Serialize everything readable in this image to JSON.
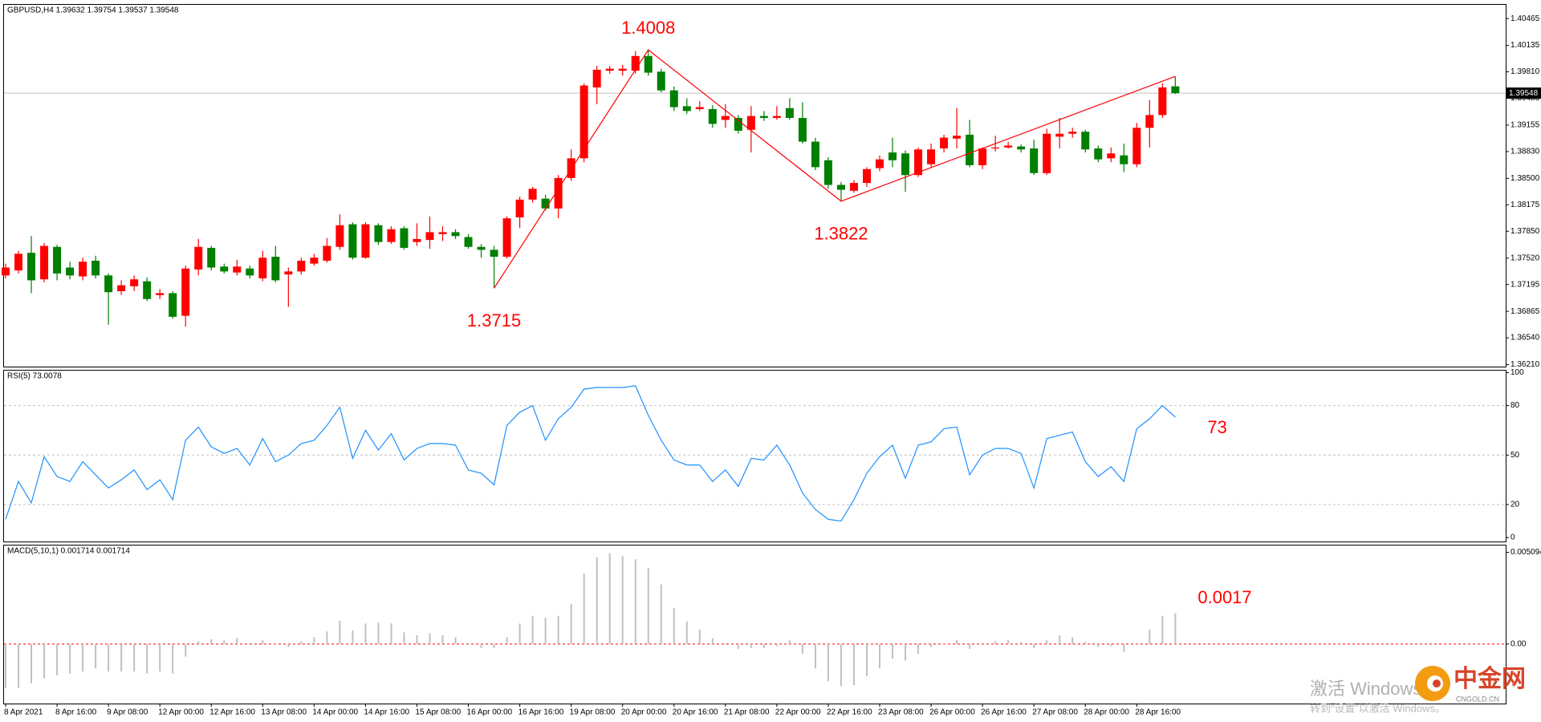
{
  "chart_data": [
    {
      "type": "candlestick",
      "title": "GBPUSD,H4  1.39632 1.39754 1.39537 1.39548",
      "x": [
        "8 Apr 2021",
        null,
        null,
        null,
        "8 Apr 16:00",
        null,
        null,
        null,
        "9 Apr 08:00",
        null,
        null,
        null,
        "12 Apr 00:00",
        null,
        null,
        null,
        "12 Apr 16:00",
        null,
        null,
        null,
        "13 Apr 08:00",
        null,
        null,
        null,
        "14 Apr 00:00",
        null,
        null,
        null,
        "14 Apr 16:00",
        null,
        null,
        null,
        "15 Apr 08:00",
        null,
        null,
        null,
        "16 Apr 00:00",
        null,
        null,
        null,
        "16 Apr 16:00",
        null,
        null,
        null,
        "19 Apr 08:00",
        null,
        null,
        null,
        "20 Apr 00:00",
        null,
        null,
        null,
        "20 Apr 16:00",
        null,
        null,
        null,
        "21 Apr 08:00",
        null,
        null,
        null,
        "22 Apr 00:00",
        null,
        null,
        null,
        "22 Apr 16:00",
        null,
        null,
        null,
        "23 Apr 08:00",
        null,
        null,
        null,
        "26 Apr 00:00",
        null,
        null,
        null,
        "26 Apr 16:00",
        null,
        null,
        null,
        "27 Apr 08:00",
        null,
        null,
        null,
        "28 Apr 00:00",
        null,
        null,
        null,
        "28 Apr 16:00",
        null,
        null,
        null
      ],
      "open": [
        1.37307,
        1.37368,
        1.37585,
        1.37259,
        1.37658,
        1.37404,
        1.37295,
        1.37488,
        1.37307,
        1.37113,
        1.37174,
        1.37235,
        1.37065,
        1.37089,
        1.36811,
        1.3738,
        1.37646,
        1.37416,
        1.37343,
        1.37392,
        1.37271,
        1.37537,
        1.37319,
        1.37356,
        1.37452,
        1.37488,
        1.37658,
        1.37936,
        1.37525,
        1.37924,
        1.37718,
        1.37887,
        1.37718,
        1.37743,
        1.37815,
        1.37839,
        1.37779,
        1.37658,
        1.37622,
        1.37537,
        1.38021,
        1.38239,
        1.38251,
        1.3813,
        1.38505,
        1.38747,
        1.39618,
        1.39824,
        1.39824,
        1.39824,
        1.40005,
        1.39812,
        1.39582,
        1.39388,
        1.39352,
        1.39352,
        1.39219,
        1.39243,
        1.39098,
        1.39267,
        1.39243,
        1.39364,
        1.39243,
        1.38952,
        1.38723,
        1.3842,
        1.38348,
        1.38444,
        1.38626,
        1.38819,
        1.38807,
        1.38541,
        1.38674,
        1.38868,
        1.38989,
        1.39037,
        1.38662,
        1.38868,
        1.3888,
        1.38892,
        1.38868,
        1.38565,
        1.39013,
        1.39049,
        1.39074,
        1.38868,
        1.38747,
        1.38783,
        1.38674,
        1.39122,
        1.39279,
        1.39632
      ],
      "high": [
        1.37452,
        1.3761,
        1.37791,
        1.37706,
        1.37682,
        1.37476,
        1.37525,
        1.37549,
        1.37331,
        1.37247,
        1.37307,
        1.37283,
        1.37138,
        1.37113,
        1.37428,
        1.37755,
        1.3767,
        1.37452,
        1.375,
        1.37428,
        1.3761,
        1.3767,
        1.37404,
        1.37525,
        1.37573,
        1.37767,
        1.38057,
        1.3796,
        1.3796,
        1.37948,
        1.37912,
        1.37912,
        1.37948,
        1.38033,
        1.37912,
        1.37875,
        1.37815,
        1.37694,
        1.3767,
        1.38033,
        1.38275,
        1.38396,
        1.38299,
        1.38541,
        1.38856,
        1.39667,
        1.39884,
        1.39884,
        1.39896,
        1.40066,
        1.4008,
        1.39848,
        1.3963,
        1.39485,
        1.39449,
        1.394,
        1.39412,
        1.39279,
        1.39388,
        1.39328,
        1.39388,
        1.39485,
        1.39437,
        1.39001,
        1.38759,
        1.38456,
        1.3848,
        1.38638,
        1.38783,
        1.39001,
        1.38843,
        1.3888,
        1.38928,
        1.39037,
        1.39364,
        1.39219,
        1.3888,
        1.39025,
        1.38952,
        1.38916,
        1.38976,
        1.3911,
        1.39243,
        1.39122,
        1.39098,
        1.38904,
        1.3888,
        1.38928,
        1.39182,
        1.39461,
        1.39667,
        1.39754
      ],
      "low": [
        1.37271,
        1.37331,
        1.37089,
        1.37222,
        1.37247,
        1.37259,
        1.37247,
        1.37271,
        1.36702,
        1.37065,
        1.37113,
        1.36992,
        1.37017,
        1.36775,
        1.36678,
        1.37307,
        1.37368,
        1.37331,
        1.37307,
        1.37271,
        1.37235,
        1.37222,
        1.3692,
        1.37319,
        1.37428,
        1.37464,
        1.37622,
        1.375,
        1.37513,
        1.37682,
        1.37694,
        1.37622,
        1.3767,
        1.37634,
        1.3773,
        1.37755,
        1.37634,
        1.37525,
        1.3715,
        1.37513,
        1.37888,
        1.38202,
        1.38106,
        1.38009,
        1.38469,
        1.38698,
        1.39412,
        1.39788,
        1.39763,
        1.39788,
        1.39763,
        1.39558,
        1.39328,
        1.39291,
        1.39328,
        1.39122,
        1.39122,
        1.39049,
        1.38819,
        1.39207,
        1.39219,
        1.39219,
        1.38928,
        1.38601,
        1.38372,
        1.3822,
        1.38323,
        1.38396,
        1.38589,
        1.38638,
        1.38335,
        1.38517,
        1.38638,
        1.38819,
        1.38868,
        1.38638,
        1.38614,
        1.38831,
        1.38868,
        1.38819,
        1.38541,
        1.38541,
        1.38868,
        1.39001,
        1.38819,
        1.38698,
        1.38698,
        1.38577,
        1.38638,
        1.3888,
        1.39243,
        1.39537
      ],
      "close": [
        1.37404,
        1.37573,
        1.37247,
        1.3767,
        1.37331,
        1.37307,
        1.37476,
        1.37307,
        1.37101,
        1.37186,
        1.37259,
        1.37017,
        1.37089,
        1.36799,
        1.37392,
        1.37658,
        1.37404,
        1.37356,
        1.37416,
        1.37307,
        1.37525,
        1.37247,
        1.37356,
        1.37488,
        1.37525,
        1.3767,
        1.37924,
        1.37525,
        1.37936,
        1.37718,
        1.37875,
        1.37646,
        1.37755,
        1.37839,
        1.37839,
        1.37791,
        1.37658,
        1.37622,
        1.37537,
        1.38009,
        1.38239,
        1.38372,
        1.3813,
        1.38505,
        1.38747,
        1.39642,
        1.39836,
        1.39848,
        1.39848,
        1.40005,
        1.398,
        1.39582,
        1.39376,
        1.39328,
        1.39376,
        1.3917,
        1.39267,
        1.39086,
        1.39267,
        1.39243,
        1.39267,
        1.39243,
        1.38952,
        1.38638,
        1.3842,
        1.3836,
        1.38444,
        1.38614,
        1.38734,
        1.38723,
        1.38541,
        1.38856,
        1.38856,
        1.39001,
        1.39025,
        1.38662,
        1.38868,
        1.3888,
        1.38904,
        1.38856,
        1.38565,
        1.39049,
        1.39049,
        1.39074,
        1.38856,
        1.38734,
        1.38807,
        1.38674,
        1.39122,
        1.39279,
        1.39618,
        1.39548
      ],
      "up_color": "#ff0000",
      "down_color": "#008000",
      "ylim": [
        1.36186,
        1.40634
      ],
      "yticks": [
        1.40465,
        1.40135,
        {
          "value": 1.3981,
          "label": "1.39810"
        },
        1.39485,
        1.39155,
        {
          "value": 1.3883,
          "label": "1.38830"
        },
        {
          "value": 1.385,
          "label": "1.38500"
        },
        1.38175,
        {
          "value": 1.3785,
          "label": "1.37850"
        },
        {
          "value": 1.3752,
          "label": "1.37520"
        },
        1.37195,
        1.36865,
        {
          "value": 1.3654,
          "label": "1.36540"
        },
        {
          "value": 1.3621,
          "label": "1.36210"
        }
      ],
      "current_price": 1.39548,
      "annotations": [
        {
          "label": "1.3715",
          "value": 1.3715
        },
        {
          "label": "1.4008",
          "value": 1.4008
        },
        {
          "label": "1.3822",
          "value": 1.3822
        }
      ],
      "annotation_color": "#ff0000"
    },
    {
      "type": "line",
      "title": "RSI(5) 73.0078",
      "color": "#1e90ff",
      "values": [
        11,
        34,
        21,
        49,
        37,
        34,
        46,
        38,
        30,
        35,
        41,
        29,
        35,
        23,
        59,
        67,
        55,
        51,
        54,
        44,
        60,
        46,
        50,
        57,
        59,
        68,
        79,
        48,
        65,
        53,
        63,
        47,
        54,
        57,
        57,
        56,
        41,
        39,
        32,
        68,
        76,
        80,
        59,
        72,
        79,
        90,
        91,
        91,
        91,
        92,
        74,
        59,
        47,
        44,
        44,
        34,
        41,
        31,
        48,
        47,
        56,
        44,
        27,
        17,
        11,
        10,
        23,
        39,
        49,
        56,
        36,
        56,
        58,
        66,
        67,
        38,
        50,
        54,
        54,
        51,
        30,
        60,
        62,
        64,
        46,
        37,
        43,
        34,
        66,
        72,
        80,
        73.0078
      ],
      "ylim": [
        -2.4,
        101.2
      ],
      "yticks": [
        100,
        80,
        50,
        20,
        0
      ],
      "levels": [
        80,
        50,
        20
      ],
      "annotations": [
        {
          "label": "73"
        }
      ],
      "annotation_color": "#ff0000"
    },
    {
      "type": "histogram",
      "title": "MACD(5,10,1) 0.001714 0.001714",
      "color": "#c0c0c0",
      "values": [
        -0.00244,
        -0.00244,
        -0.00217,
        -0.0019,
        -0.00173,
        -0.00163,
        -0.00152,
        -0.00135,
        -0.00152,
        -0.00152,
        -0.00152,
        -0.00163,
        -0.00152,
        -0.00163,
        -0.0007,
        0.00016,
        0.00027,
        0.00022,
        0.00033,
        -5e-05,
        0.00022,
        5e-05,
        -0.00016,
        0.00016,
        0.00038,
        0.0007,
        0.0013,
        0.00076,
        0.00114,
        0.00119,
        0.00114,
        0.00065,
        0.00049,
        0.0006,
        0.00049,
        0.00038,
        -5e-05,
        -0.00022,
        -0.00022,
        0.00038,
        0.00114,
        0.00157,
        0.00146,
        0.00157,
        0.00222,
        0.0039,
        0.00482,
        0.00504,
        0.00488,
        0.00471,
        0.00423,
        0.00331,
        0.002,
        0.00125,
        0.00081,
        0.00033,
        5e-05,
        -0.00027,
        -0.00022,
        -0.00022,
        -0.00011,
        0.00022,
        -0.00054,
        -0.00135,
        -0.00206,
        -0.00233,
        -0.00228,
        -0.00179,
        -0.00135,
        -0.00081,
        -0.00092,
        -0.00054,
        -0.00016,
        5e-05,
        0.00022,
        -0.00027,
        -5e-05,
        0.00016,
        0.00022,
        0.00011,
        -0.00022,
        0.00022,
        0.00049,
        0.00038,
        0.00011,
        -0.00016,
        -0.00011,
        -0.00043,
        5e-05,
        0.00081,
        0.00157,
        0.001714
      ],
      "ylim": [
        -0.0033,
        0.00547
      ],
      "yticks": [
        0.005094,
        {
          "value": 0,
          "label": "0.00"
        }
      ],
      "levels": [
        0
      ],
      "level_color": "#ff0000",
      "annotations": [
        {
          "label": "0.0017"
        }
      ],
      "annotation_color": "#ff0000"
    }
  ],
  "watermark": {
    "line1": "激活 Windows",
    "line2": "转到“设置”以激活 Windows。",
    "logo": "中金网",
    "logo_sub": "CNGOLD.CN"
  }
}
